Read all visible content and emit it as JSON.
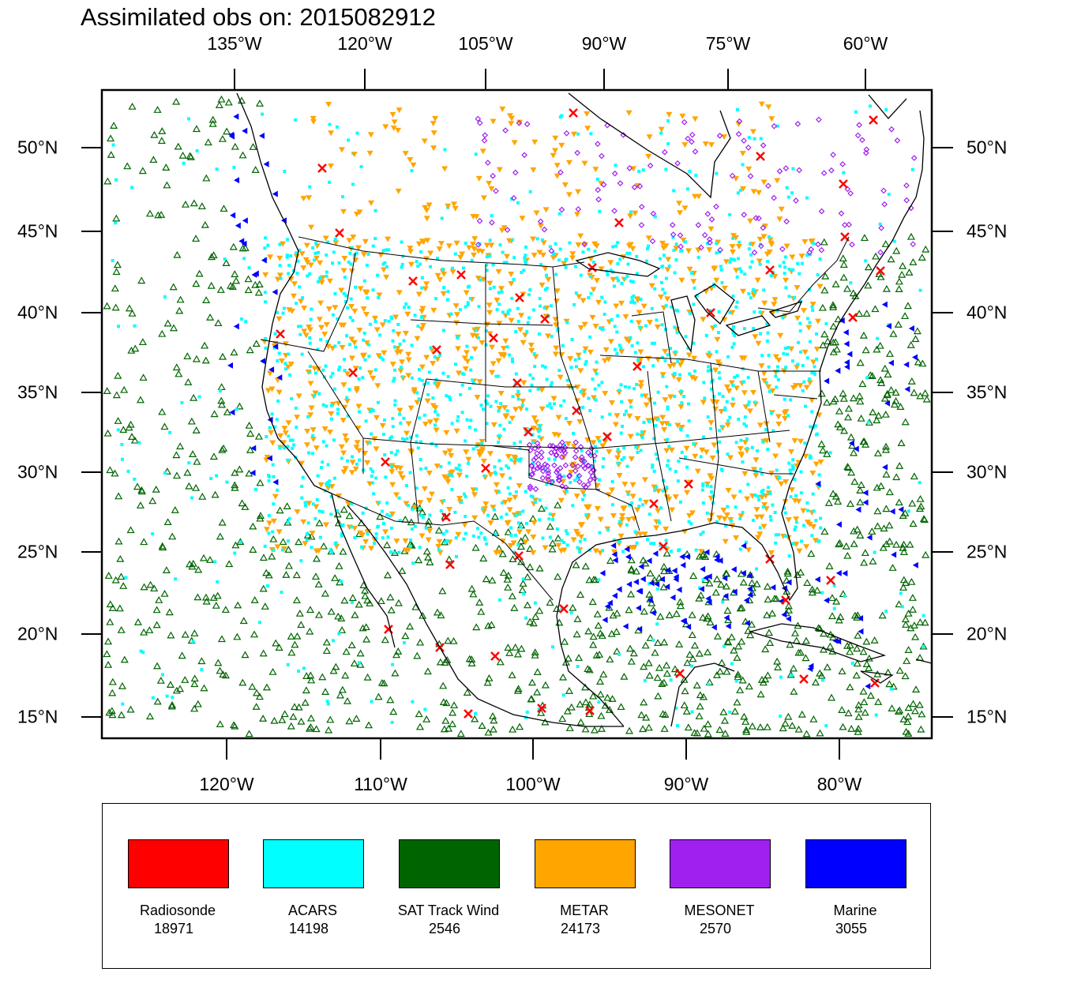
{
  "title": "Assimilated obs on: 2015082912",
  "axes": {
    "top_lon_labels": [
      "135°W",
      "120°W",
      "105°W",
      "90°W",
      "75°W",
      "60°W"
    ],
    "bottom_lon_labels": [
      "120°W",
      "110°W",
      "100°W",
      "90°W",
      "80°W"
    ],
    "lat_labels": [
      "50°N",
      "45°N",
      "40°N",
      "35°N",
      "30°N",
      "25°N",
      "20°N",
      "15°N"
    ]
  },
  "map": {
    "projection": "Lambert conformal, CONUS domain",
    "land_line_color": "#000000",
    "observation_types": [
      {
        "key": "radiosonde",
        "name": "Radiosonde",
        "count": "18971",
        "color": "#ff0000",
        "marker": "x-cross"
      },
      {
        "key": "acars",
        "name": "ACARS",
        "count": "14198",
        "color": "#00ffff",
        "marker": "square-dot"
      },
      {
        "key": "sat_track_wind",
        "name": "SAT Track Wind",
        "count": "2546",
        "color": "#006400",
        "marker": "hollow-triangle-up"
      },
      {
        "key": "metar",
        "name": "METAR",
        "count": "24173",
        "color": "#ffa500",
        "marker": "triangle-down"
      },
      {
        "key": "mesonet",
        "name": "MESONET",
        "count": "2570",
        "color": "#a020f0",
        "marker": "diamond"
      },
      {
        "key": "marine",
        "name": "Marine",
        "count": "3055",
        "color": "#0000ff",
        "marker": "triangle-left"
      }
    ]
  },
  "legend": {
    "items": [
      {
        "name": "Radiosonde",
        "count": "18971",
        "color": "#ff0000"
      },
      {
        "name": "ACARS",
        "count": "14198",
        "color": "#00ffff"
      },
      {
        "name": "SAT Track Wind",
        "count": "2546",
        "color": "#006400"
      },
      {
        "name": "METAR",
        "count": "24173",
        "color": "#ffa500"
      },
      {
        "name": "MESONET",
        "count": "2570",
        "color": "#a020f0"
      },
      {
        "name": "Marine",
        "count": "3055",
        "color": "#0000ff"
      }
    ]
  }
}
